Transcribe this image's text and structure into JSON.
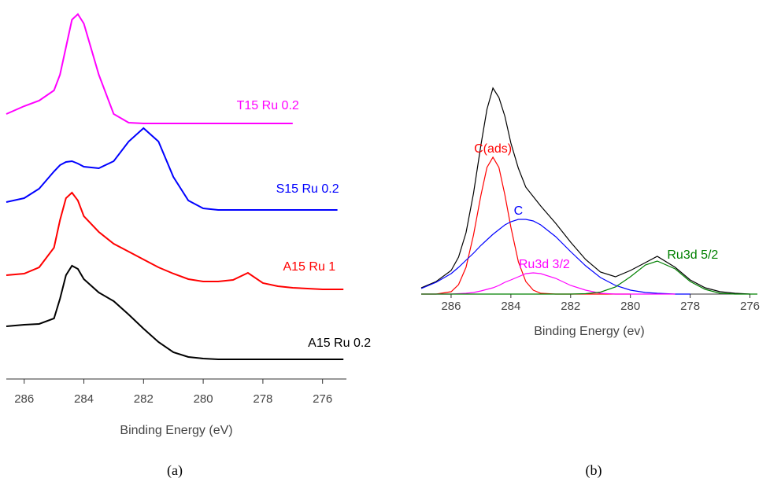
{
  "chart_data": [
    {
      "type": "line",
      "label": "(a)",
      "x_label": "Binding Energy (eV)",
      "x": [
        286.6,
        286,
        285.5,
        285,
        284.8,
        284.6,
        284.4,
        284.2,
        284,
        283.5,
        283,
        282.5,
        282,
        281.5,
        281,
        280.5,
        280,
        279.5,
        279,
        278.5,
        278,
        277.5,
        277,
        276.5,
        276,
        275.5,
        275.3
      ],
      "xlim": [
        286.6,
        275.2
      ],
      "xticks": [
        286,
        284,
        282,
        280,
        278,
        276
      ],
      "ylim": [
        0,
        470
      ],
      "series": [
        {
          "name": "T15 Ru 0.2",
          "color": "#ff00ff",
          "values": [
            335,
            345,
            352,
            365,
            385,
            420,
            455,
            462,
            450,
            385,
            335,
            324,
            323,
            323,
            323,
            323,
            323,
            323,
            323,
            323,
            323,
            323,
            323,
            null,
            null,
            null,
            null
          ]
        },
        {
          "name": "S15 Ru 0.2",
          "color": "#0000ff",
          "values": [
            223,
            228,
            240,
            262,
            270,
            274,
            275,
            272,
            268,
            266,
            275,
            300,
            317,
            300,
            255,
            225,
            215,
            213,
            213,
            213,
            213,
            213,
            213,
            213,
            213,
            213,
            null
          ]
        },
        {
          "name": "A15 Ru 1",
          "color": "#ff0000",
          "values": [
            130,
            132,
            140,
            165,
            200,
            228,
            235,
            225,
            205,
            185,
            170,
            160,
            150,
            140,
            132,
            125,
            122,
            122,
            124,
            133,
            120,
            116,
            114,
            113,
            112,
            112,
            112
          ]
        },
        {
          "name": "A15 Ru 0.2",
          "color": "#000000",
          "values": [
            65,
            67,
            68,
            75,
            100,
            130,
            142,
            138,
            125,
            108,
            97,
            80,
            62,
            45,
            32,
            26,
            24,
            23,
            23,
            23,
            23,
            23,
            23,
            23,
            23,
            23,
            23
          ]
        }
      ]
    },
    {
      "type": "line",
      "label": "(b)",
      "x_label": "Binding Energy (ev)",
      "x": [
        287,
        286.5,
        286,
        285.75,
        285.5,
        285.25,
        285,
        284.8,
        284.6,
        284.4,
        284.2,
        284,
        283.75,
        283.5,
        283.25,
        283,
        282.5,
        282,
        281.5,
        281,
        280.5,
        280,
        279.5,
        279.1,
        278.5,
        278,
        277.5,
        277,
        276.5,
        276,
        275.75
      ],
      "xlim": [
        287,
        275.75
      ],
      "xticks": [
        286,
        284,
        282,
        280,
        278,
        276
      ],
      "ylim": [
        0,
        270
      ],
      "series": [
        {
          "color": "#000000",
          "values": [
            8,
            16,
            30,
            47,
            78,
            128,
            190,
            235,
            262,
            250,
            226,
            192,
            160,
            136,
            124,
            112,
            90,
            66,
            44,
            28,
            22,
            30,
            40,
            48,
            34,
            18,
            8,
            3,
            1,
            0,
            null
          ]
        },
        {
          "name": "C(ads)",
          "color": "#ff0000",
          "values": [
            0,
            0,
            3,
            12,
            34,
            75,
            126,
            161,
            174,
            161,
            126,
            85,
            41,
            16,
            5,
            1,
            0,
            0,
            0,
            0,
            0,
            0,
            null,
            null,
            null,
            null,
            null,
            null,
            null,
            null,
            null
          ]
        },
        {
          "name": "C",
          "color": "#0000ff",
          "values": [
            7,
            15,
            26,
            34,
            43,
            52,
            62,
            69,
            76,
            82,
            88,
            92,
            95,
            95,
            93,
            88,
            73,
            54,
            36,
            21,
            11,
            5,
            2,
            1,
            0,
            0,
            null,
            null,
            null,
            null,
            null
          ]
        },
        {
          "name": "Ru3d 3/2",
          "color": "#ff00ff",
          "values": [
            0,
            0,
            0,
            0.5,
            1,
            2,
            4,
            6,
            8,
            11,
            15,
            18,
            22,
            26,
            27,
            26,
            20,
            11,
            5,
            1,
            0,
            0,
            0,
            0,
            0,
            null,
            null,
            null,
            null,
            null,
            null
          ]
        },
        {
          "name": "Ru3d 5/2",
          "color": "#008000",
          "values": [
            0,
            0,
            0,
            0,
            0,
            0,
            0,
            0,
            0,
            0,
            0,
            0,
            0,
            0,
            0,
            0,
            0,
            0,
            0.5,
            2.5,
            9,
            22,
            37,
            42,
            32,
            16,
            6,
            1,
            0,
            0,
            0
          ]
        }
      ]
    }
  ]
}
